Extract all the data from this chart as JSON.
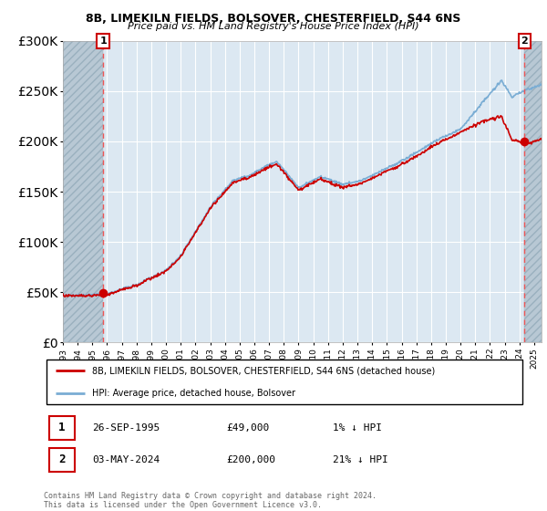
{
  "title": "8B, LIMEKILN FIELDS, BOLSOVER, CHESTERFIELD, S44 6NS",
  "subtitle": "Price paid vs. HM Land Registry's House Price Index (HPI)",
  "legend_line1": "8B, LIMEKILN FIELDS, BOLSOVER, CHESTERFIELD, S44 6NS (detached house)",
  "legend_line2": "HPI: Average price, detached house, Bolsover",
  "annotation1_date": "26-SEP-1995",
  "annotation1_price": "£49,000",
  "annotation1_hpi": "1% ↓ HPI",
  "annotation2_date": "03-MAY-2024",
  "annotation2_price": "£200,000",
  "annotation2_hpi": "21% ↓ HPI",
  "footer": "Contains HM Land Registry data © Crown copyright and database right 2024.\nThis data is licensed under the Open Government Licence v3.0.",
  "sale1_year": 1995.73,
  "sale1_price": 49000,
  "sale2_year": 2024.34,
  "sale2_price": 200000,
  "hpi_color": "#7aadd4",
  "price_color": "#cc0000",
  "sale_marker_color": "#cc0000",
  "annotation_box_color": "#cc0000",
  "dashed_line_color": "#ee5555",
  "plot_bg_color": "#dce8f2",
  "hatch_color": "#b8c8d4",
  "ylim": [
    0,
    300000
  ],
  "xlim_start": 1993.0,
  "xlim_end": 2025.5,
  "ytick_values": [
    0,
    50000,
    100000,
    150000,
    200000,
    250000,
    300000
  ],
  "xtick_years": [
    1993,
    1994,
    1995,
    1996,
    1997,
    1998,
    1999,
    2000,
    2001,
    2002,
    2003,
    2004,
    2005,
    2006,
    2007,
    2008,
    2009,
    2010,
    2011,
    2012,
    2013,
    2014,
    2015,
    2016,
    2017,
    2018,
    2019,
    2020,
    2021,
    2022,
    2023,
    2024,
    2025
  ]
}
